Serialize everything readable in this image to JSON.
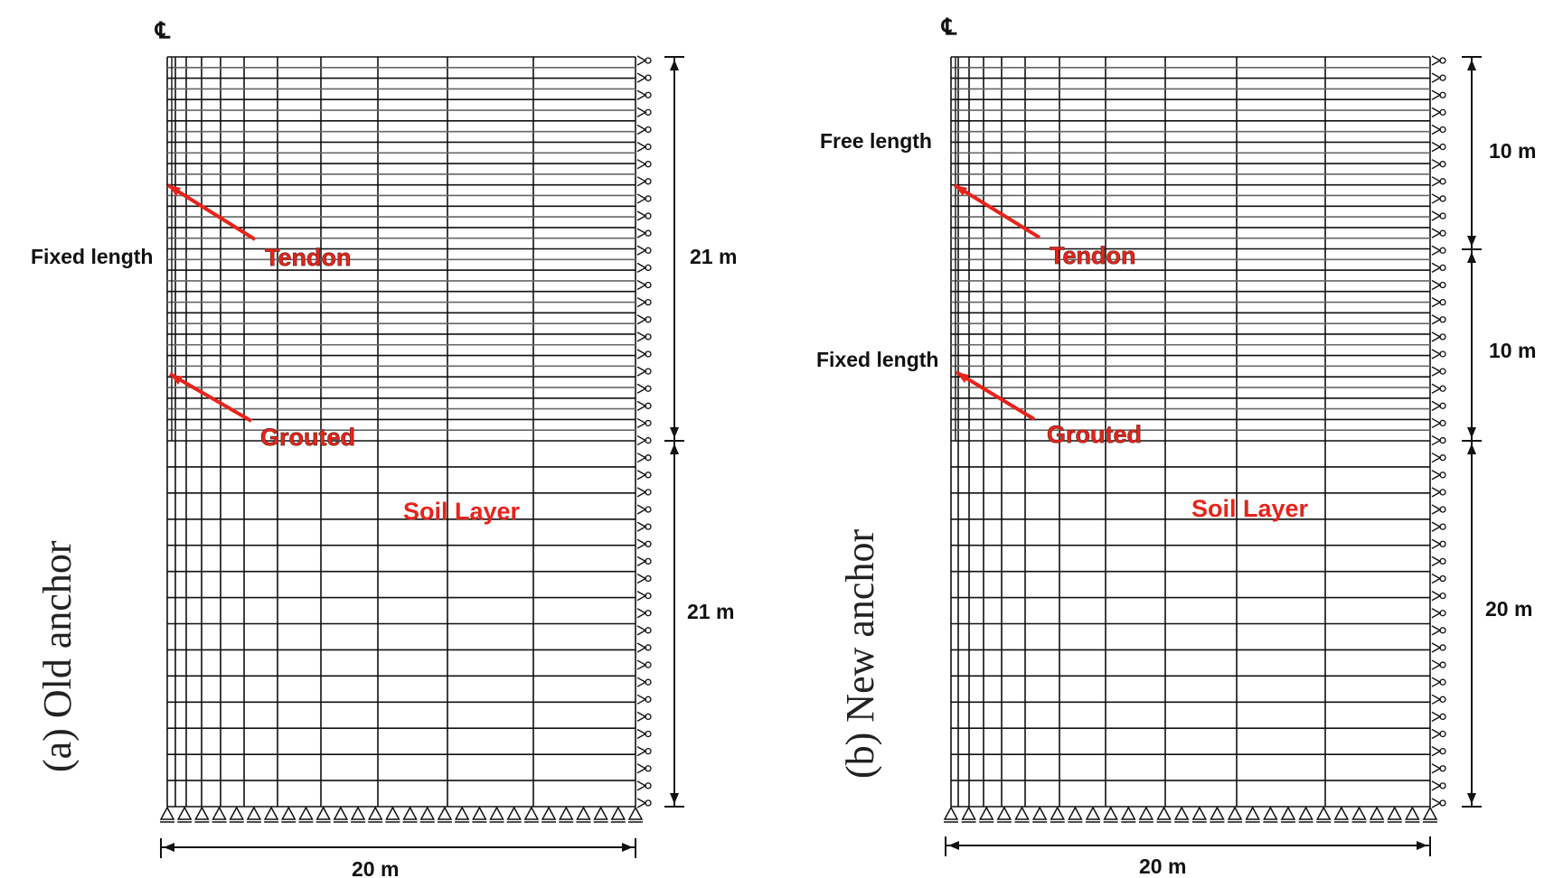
{
  "colors": {
    "line": "#111111",
    "red": "#e8231a",
    "gray": "#666666"
  },
  "centerline_symbol": "℄",
  "panels": [
    {
      "title": "(a) Old anchor",
      "width_dim": "20 m",
      "dims": [
        "21 m",
        "21 m"
      ],
      "side_labels": [
        "Fixed length"
      ],
      "tendon_label": "Tendon",
      "grouted_label": "Grouted",
      "soil_label": "Soil Layer"
    },
    {
      "title": "(b) New anchor",
      "width_dim": "20 m",
      "dims": [
        "10 m",
        "10 m",
        "20 m"
      ],
      "side_labels": [
        "Free length",
        "Fixed length"
      ],
      "tendon_label": "Tendon",
      "grouted_label": "Grouted",
      "soil_label": "Soil Layer"
    }
  ]
}
